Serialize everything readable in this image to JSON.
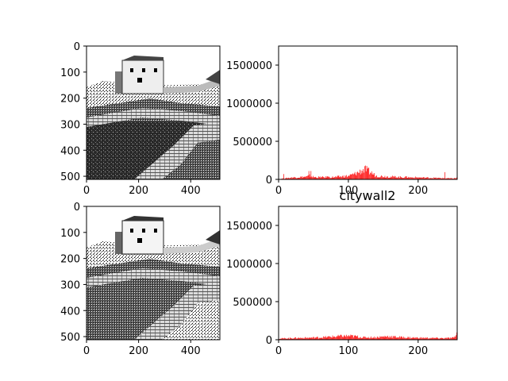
{
  "colors": {
    "bar": "#ff0000",
    "axis": "#000000",
    "background": "#ffffff"
  },
  "chart_data": [
    {
      "type": "image",
      "content": "grayscale photo of a city wall (Great Wall) on a hillside",
      "xlim": [
        0,
        512
      ],
      "ylim": [
        512,
        0
      ],
      "xticks": [
        0,
        200,
        400
      ],
      "xtick_labels": [
        "0",
        "200",
        "400"
      ],
      "yticks": [
        0,
        100,
        200,
        300,
        400,
        500
      ],
      "ytick_labels": [
        "0",
        "100",
        "200",
        "300",
        "400",
        "500"
      ],
      "variant": "original"
    },
    {
      "type": "bar",
      "xlim": [
        0,
        256
      ],
      "ylim": [
        0,
        1750000
      ],
      "xticks": [
        0,
        100,
        200
      ],
      "xtick_labels": [
        "0",
        "100",
        "200"
      ],
      "yticks": [
        0,
        500000,
        1000000,
        1500000
      ],
      "ytick_labels": [
        "0",
        "500000",
        "1000000",
        "1500000"
      ],
      "bins": 256,
      "profile": [
        {
          "x": 0,
          "y": 3000
        },
        {
          "x": 5,
          "y": 10000
        },
        {
          "x": 10,
          "y": 15000
        },
        {
          "x": 15,
          "y": 22000
        },
        {
          "x": 20,
          "y": 25000
        },
        {
          "x": 30,
          "y": 30000
        },
        {
          "x": 40,
          "y": 35000
        },
        {
          "x": 45,
          "y": 50000
        },
        {
          "x": 50,
          "y": 30000
        },
        {
          "x": 60,
          "y": 28000
        },
        {
          "x": 80,
          "y": 30000
        },
        {
          "x": 100,
          "y": 45000
        },
        {
          "x": 110,
          "y": 75000
        },
        {
          "x": 120,
          "y": 120000
        },
        {
          "x": 125,
          "y": 130000
        },
        {
          "x": 130,
          "y": 100000
        },
        {
          "x": 140,
          "y": 45000
        },
        {
          "x": 160,
          "y": 35000
        },
        {
          "x": 180,
          "y": 28000
        },
        {
          "x": 200,
          "y": 25000
        },
        {
          "x": 220,
          "y": 20000
        },
        {
          "x": 240,
          "y": 15000
        },
        {
          "x": 250,
          "y": 12000
        },
        {
          "x": 255,
          "y": 20000
        }
      ],
      "spikes": [
        {
          "x": 7,
          "y": 70000
        },
        {
          "x": 43,
          "y": 110000
        },
        {
          "x": 46,
          "y": 110000
        },
        {
          "x": 70,
          "y": 40000
        },
        {
          "x": 92,
          "y": 50000
        },
        {
          "x": 127,
          "y": 140000
        },
        {
          "x": 183,
          "y": 40000
        },
        {
          "x": 238,
          "y": 95000
        }
      ]
    },
    {
      "type": "image",
      "content": "histogram-equalized grayscale photo of the city wall",
      "xlim": [
        0,
        512
      ],
      "ylim": [
        512,
        0
      ],
      "xticks": [
        0,
        200,
        400
      ],
      "xtick_labels": [
        "0",
        "200",
        "400"
      ],
      "yticks": [
        0,
        100,
        200,
        300,
        400,
        500
      ],
      "ytick_labels": [
        "0",
        "100",
        "200",
        "300",
        "400",
        "500"
      ],
      "variant": "equalized"
    },
    {
      "type": "bar",
      "title": "citywall2",
      "xlim": [
        0,
        256
      ],
      "ylim": [
        0,
        1750000
      ],
      "xticks": [
        0,
        100,
        200
      ],
      "xtick_labels": [
        "0",
        "100",
        "200"
      ],
      "yticks": [
        0,
        500000,
        1000000,
        1500000
      ],
      "ytick_labels": [
        "0",
        "500000",
        "1000000",
        "1500000"
      ],
      "bins": 256,
      "profile": [
        {
          "x": 0,
          "y": 15000
        },
        {
          "x": 20,
          "y": 22000
        },
        {
          "x": 40,
          "y": 25000
        },
        {
          "x": 60,
          "y": 30000
        },
        {
          "x": 80,
          "y": 42000
        },
        {
          "x": 90,
          "y": 48000
        },
        {
          "x": 100,
          "y": 50000
        },
        {
          "x": 110,
          "y": 45000
        },
        {
          "x": 120,
          "y": 30000
        },
        {
          "x": 140,
          "y": 32000
        },
        {
          "x": 155,
          "y": 45000
        },
        {
          "x": 165,
          "y": 38000
        },
        {
          "x": 180,
          "y": 30000
        },
        {
          "x": 200,
          "y": 25000
        },
        {
          "x": 220,
          "y": 22000
        },
        {
          "x": 240,
          "y": 20000
        },
        {
          "x": 250,
          "y": 25000
        },
        {
          "x": 253,
          "y": 40000
        }
      ],
      "spikes": [
        {
          "x": 254,
          "y": 60000
        },
        {
          "x": 255,
          "y": 95000
        }
      ]
    }
  ]
}
